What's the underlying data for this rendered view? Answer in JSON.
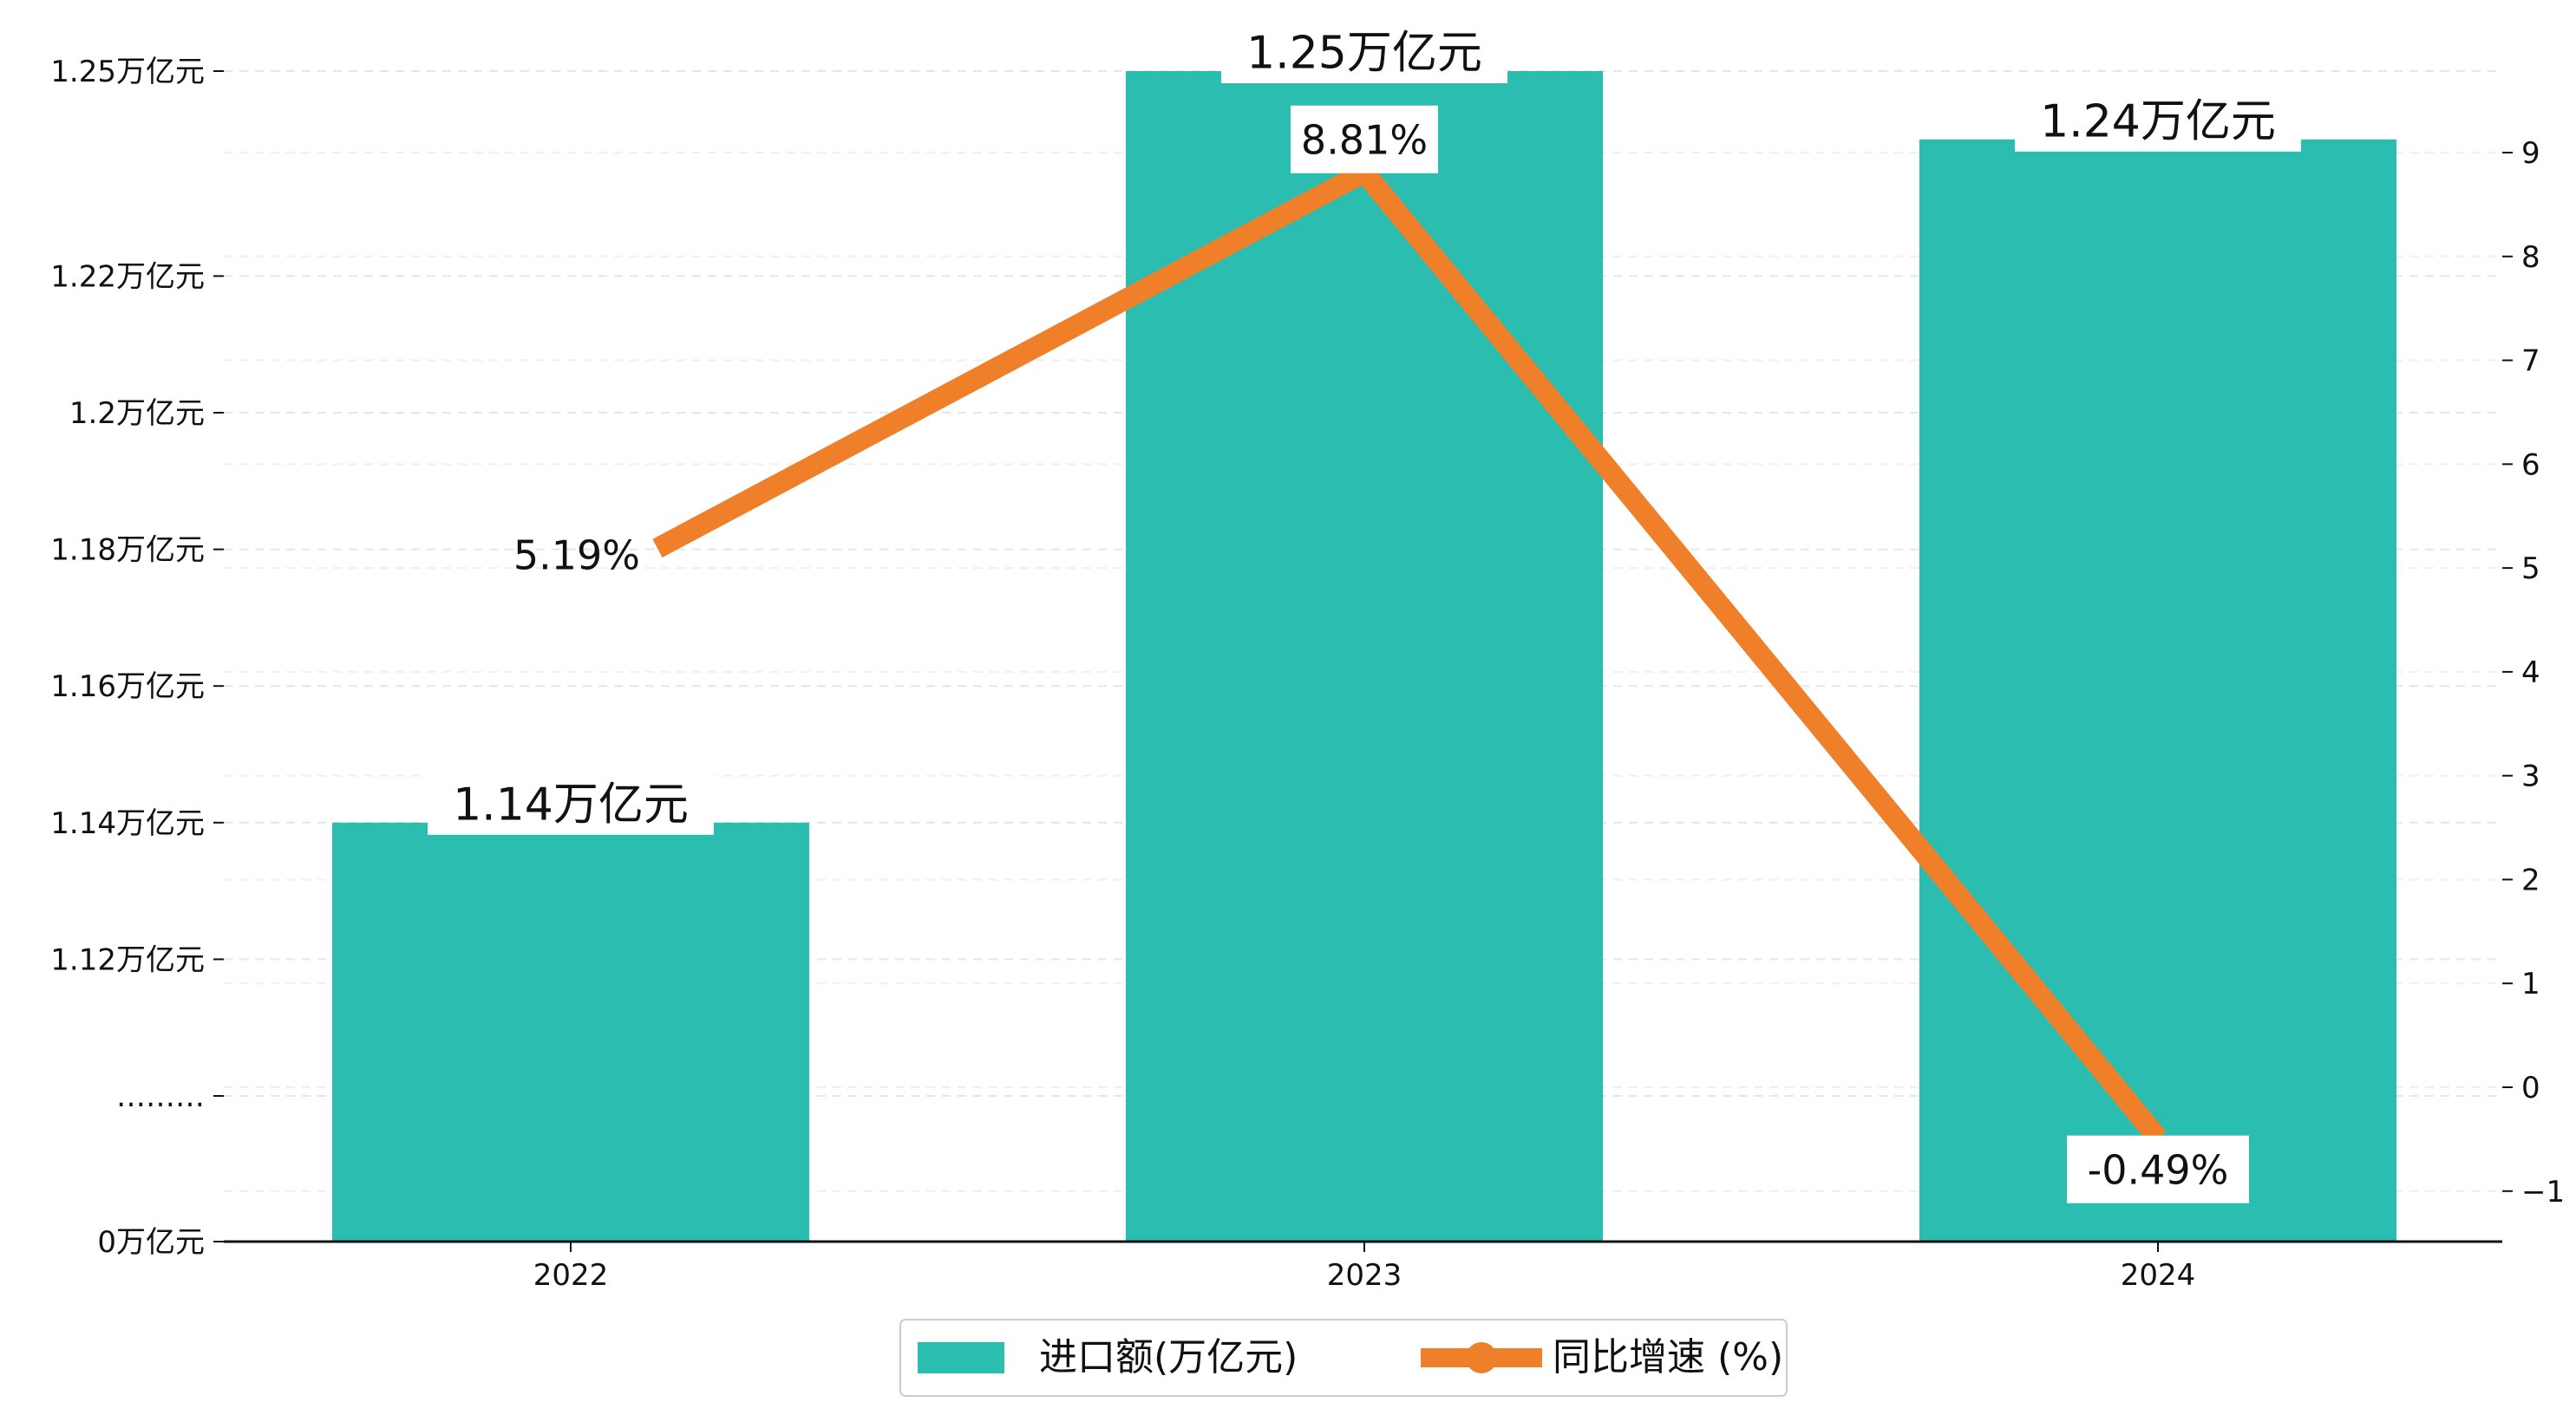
{
  "chart_data": {
    "type": "bar",
    "title": "",
    "xlabel": "",
    "ylabel": "",
    "categories": [
      "2022",
      "2023",
      "2024"
    ],
    "series": [
      {
        "name": "进口额(万亿元)",
        "type": "bar",
        "axis": "left",
        "color": "#2bbdb0",
        "values": [
          1.14,
          1.25,
          1.24
        ],
        "data_labels": [
          "1.14万亿元",
          "1.25万亿元",
          "1.24万亿元"
        ]
      },
      {
        "name": "同比增速 (%)",
        "type": "line",
        "axis": "right",
        "color": "#f07f2a",
        "values": [
          5.19,
          8.81,
          -0.49
        ],
        "data_labels": [
          "5.19%",
          "8.81%",
          "-0.49%"
        ]
      }
    ],
    "left_axis": {
      "ticks": [
        {
          "pos": 0,
          "label": "0万亿元"
        },
        {
          "pos": 1.1,
          "label": "………"
        },
        {
          "pos": 1.12,
          "label": "1.12万亿元"
        },
        {
          "pos": 1.14,
          "label": "1.14万亿元"
        },
        {
          "pos": 1.16,
          "label": "1.16万亿元"
        },
        {
          "pos": 1.18,
          "label": "1.18万亿元"
        },
        {
          "pos": 1.2,
          "label": "1.2万亿元"
        },
        {
          "pos": 1.22,
          "label": "1.22万亿元"
        },
        {
          "pos": 1.25,
          "label": "1.25万亿元"
        }
      ],
      "broken": true
    },
    "right_axis": {
      "ylim": [
        -1.5,
        9.5
      ],
      "ticks": [
        -1,
        0,
        1,
        2,
        3,
        4,
        5,
        6,
        7,
        8,
        9
      ],
      "tick_labels": [
        "−1",
        "0",
        "1",
        "2",
        "3",
        "4",
        "5",
        "6",
        "7",
        "8",
        "9"
      ]
    },
    "grid": "horizontal-dashed",
    "legend": "bottom-center"
  }
}
